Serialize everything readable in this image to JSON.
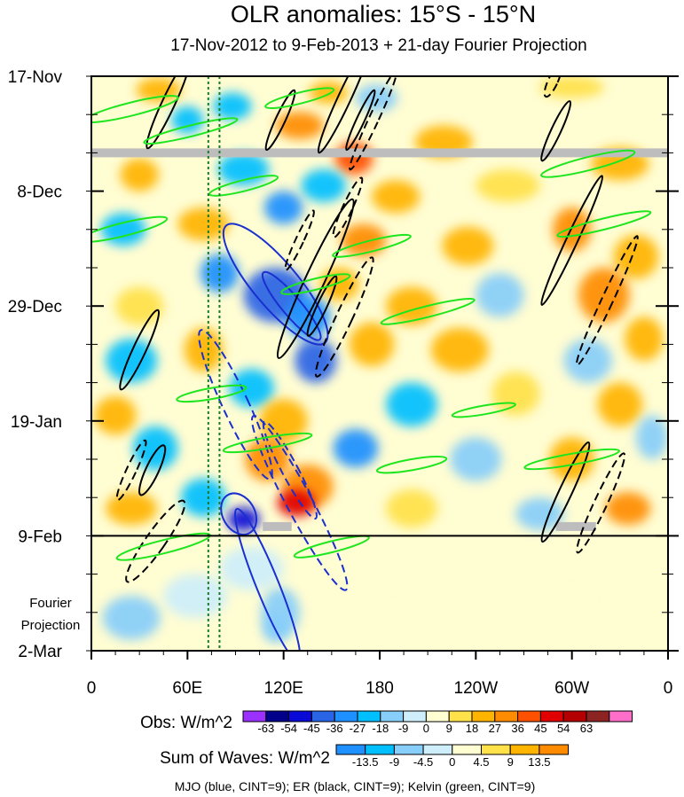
{
  "chart_data": {
    "type": "heatmap",
    "title": "OLR anomalies: 15°S - 15°N",
    "subtitle": "17-Nov-2012 to 9-Feb-2013 + 21-day Fourier Projection",
    "y_tick_labels": [
      "17-Nov",
      "8-Dec",
      "29-Dec",
      "19-Jan",
      "9-Feb",
      "2-Mar"
    ],
    "y_tick_days": [
      0,
      21,
      42,
      63,
      84,
      105
    ],
    "y_extra_label": [
      "Fourier",
      "Projection"
    ],
    "x_tick_labels": [
      "0",
      "60E",
      "120E",
      "180",
      "120W",
      "60W",
      "0"
    ],
    "x_tick_lons": [
      0,
      60,
      120,
      180,
      240,
      300,
      360
    ],
    "ylim_days": [
      0,
      105
    ],
    "xlim_lon": [
      0,
      360
    ],
    "obs_end_day": 84,
    "reference_lines_lon": [
      73,
      80
    ],
    "missing_data_rows": [
      {
        "day": 14,
        "lon_start": 0,
        "lon_end": 360
      },
      {
        "day": 82.3,
        "lon_start": 107,
        "lon_end": 125
      },
      {
        "day": 82.3,
        "lon_start": 290,
        "lon_end": 315
      }
    ],
    "obs_colorbar": {
      "label": "Obs: W/m^2",
      "tick_labels": [
        "-63",
        "-54",
        "-45",
        "-36",
        "-27",
        "-18",
        "-9",
        "0",
        "9",
        "18",
        "27",
        "36",
        "45",
        "54",
        "63"
      ],
      "colors": [
        "#9b30ff",
        "#00008b",
        "#0a0ad8",
        "#2a64e6",
        "#1e90ff",
        "#00bfff",
        "#87cefa",
        "#cdeefa",
        "#fffdd2",
        "#ffe14a",
        "#ffb400",
        "#ff8c00",
        "#ff5000",
        "#e00000",
        "#b40000",
        "#8c2323",
        "#ff6ec8"
      ]
    },
    "waves_colorbar": {
      "label": "Sum of Waves: W/m^2",
      "tick_labels": [
        "-13.5",
        "-9",
        "-4.5",
        "0",
        "4.5",
        "9",
        "13.5"
      ],
      "colors": [
        "#1e90ff",
        "#00bfff",
        "#87cefa",
        "#cdeefa",
        "#fffdd2",
        "#ffe14a",
        "#ffb400",
        "#ff8c00"
      ]
    },
    "footnote": "MJO (blue, CINT=9); ER (black, CINT=9); Kelvin (green, CINT=9)",
    "contour_series": [
      {
        "name": "MJO",
        "color": "#1a2fd0"
      },
      {
        "name": "ER",
        "color": "#000000"
      },
      {
        "name": "Kelvin",
        "color": "#1ee61e"
      }
    ],
    "anomaly_blobs": [
      {
        "lon": 42,
        "day": 2.5,
        "rlon": 14,
        "rday": 2.2,
        "value": 22
      },
      {
        "lon": 88,
        "day": 5.5,
        "rlon": 12,
        "rday": 2.5,
        "value": -25
      },
      {
        "lon": 148,
        "day": 3,
        "rlon": 12,
        "rday": 2,
        "value": 20
      },
      {
        "lon": 178,
        "day": 4,
        "rlon": 13,
        "rday": 2.5,
        "value": -18
      },
      {
        "lon": 300,
        "day": 2,
        "rlon": 20,
        "rday": 2,
        "value": 12
      },
      {
        "lon": 60,
        "day": 8,
        "rlon": 10,
        "rday": 2.5,
        "value": -20
      },
      {
        "lon": 130,
        "day": 9,
        "rlon": 15,
        "rday": 2.5,
        "value": 28
      },
      {
        "lon": 164,
        "day": 15,
        "rlon": 12,
        "rday": 3,
        "value": 36
      },
      {
        "lon": 220,
        "day": 12,
        "rlon": 18,
        "rday": 3,
        "value": 22
      },
      {
        "lon": 95,
        "day": 17,
        "rlon": 16,
        "rday": 3,
        "value": -26
      },
      {
        "lon": 30,
        "day": 18,
        "rlon": 12,
        "rday": 3,
        "value": 22
      },
      {
        "lon": 145,
        "day": 20,
        "rlon": 14,
        "rday": 3,
        "value": -20
      },
      {
        "lon": 120,
        "day": 24,
        "rlon": 12,
        "rday": 3,
        "value": -36
      },
      {
        "lon": 190,
        "day": 22,
        "rlon": 15,
        "rday": 3,
        "value": 24
      },
      {
        "lon": 260,
        "day": 20,
        "rlon": 20,
        "rday": 3,
        "value": 16
      },
      {
        "lon": 330,
        "day": 16,
        "rlon": 18,
        "rday": 3,
        "value": 18
      },
      {
        "lon": 20,
        "day": 28,
        "rlon": 14,
        "rday": 3,
        "value": -22
      },
      {
        "lon": 70,
        "day": 27,
        "rlon": 16,
        "rday": 3,
        "value": 20
      },
      {
        "lon": 170,
        "day": 30,
        "rlon": 14,
        "rday": 3,
        "value": 30
      },
      {
        "lon": 235,
        "day": 31,
        "rlon": 16,
        "rday": 3.5,
        "value": 18
      },
      {
        "lon": 300,
        "day": 28,
        "rlon": 12,
        "rday": 4,
        "value": 27
      },
      {
        "lon": 340,
        "day": 33,
        "rlon": 14,
        "rday": 4,
        "value": 20
      },
      {
        "lon": 80,
        "day": 36,
        "rlon": 12,
        "rday": 3.5,
        "value": -28
      },
      {
        "lon": 115,
        "day": 40,
        "rlon": 20,
        "rday": 5,
        "value": -45
      },
      {
        "lon": 135,
        "day": 44,
        "rlon": 14,
        "rday": 4,
        "value": -36
      },
      {
        "lon": 155,
        "day": 38,
        "rlon": 12,
        "rday": 3,
        "value": 25
      },
      {
        "lon": 200,
        "day": 42,
        "rlon": 16,
        "rday": 3.5,
        "value": 22
      },
      {
        "lon": 255,
        "day": 40,
        "rlon": 15,
        "rday": 4,
        "value": -14
      },
      {
        "lon": 320,
        "day": 40,
        "rlon": 16,
        "rday": 5,
        "value": 27
      },
      {
        "lon": 30,
        "day": 42,
        "rlon": 15,
        "rday": 3.5,
        "value": 16
      },
      {
        "lon": 25,
        "day": 52,
        "rlon": 16,
        "rday": 4,
        "value": -24
      },
      {
        "lon": 70,
        "day": 50,
        "rlon": 12,
        "rday": 4,
        "value": 26
      },
      {
        "lon": 140,
        "day": 52,
        "rlon": 13,
        "rday": 4,
        "value": -40
      },
      {
        "lon": 175,
        "day": 49,
        "rlon": 14,
        "rday": 4,
        "value": 22
      },
      {
        "lon": 230,
        "day": 50,
        "rlon": 18,
        "rday": 4,
        "value": 20
      },
      {
        "lon": 310,
        "day": 52,
        "rlon": 15,
        "rday": 4,
        "value": -18
      },
      {
        "lon": 345,
        "day": 48,
        "rlon": 12,
        "rday": 4,
        "value": 22
      },
      {
        "lon": 100,
        "day": 57,
        "rlon": 14,
        "rday": 3.5,
        "value": -26
      },
      {
        "lon": 200,
        "day": 60,
        "rlon": 16,
        "rday": 4,
        "value": -22
      },
      {
        "lon": 265,
        "day": 58,
        "rlon": 15,
        "rday": 4,
        "value": 16
      },
      {
        "lon": 330,
        "day": 60,
        "rlon": 14,
        "rday": 4,
        "value": 26
      },
      {
        "lon": 15,
        "day": 62,
        "rlon": 13,
        "rday": 3.5,
        "value": 20
      },
      {
        "lon": 120,
        "day": 63,
        "rlon": 15,
        "rday": 4,
        "value": 24
      },
      {
        "lon": 40,
        "day": 68,
        "rlon": 14,
        "rday": 4,
        "value": -24
      },
      {
        "lon": 110,
        "day": 70,
        "rlon": 14,
        "rday": 4,
        "value": 30
      },
      {
        "lon": 165,
        "day": 68,
        "rlon": 14,
        "rday": 3.5,
        "value": -30
      },
      {
        "lon": 240,
        "day": 70,
        "rlon": 16,
        "rday": 4,
        "value": -18
      },
      {
        "lon": 300,
        "day": 70,
        "rlon": 14,
        "rday": 4,
        "value": 22
      },
      {
        "lon": 350,
        "day": 66,
        "rlon": 10,
        "rday": 4,
        "value": -18
      },
      {
        "lon": 135,
        "day": 75,
        "rlon": 16,
        "rday": 4,
        "value": 27
      },
      {
        "lon": 128,
        "day": 78,
        "rlon": 12,
        "rday": 2.5,
        "value": 48
      },
      {
        "lon": 70,
        "day": 77,
        "rlon": 14,
        "rday": 3.5,
        "value": -22
      },
      {
        "lon": 25,
        "day": 79,
        "rlon": 16,
        "rday": 3,
        "value": 24
      },
      {
        "lon": 95,
        "day": 81,
        "rlon": 10,
        "rday": 2.2,
        "value": -52
      },
      {
        "lon": 200,
        "day": 79,
        "rlon": 16,
        "rday": 3.5,
        "value": 16
      },
      {
        "lon": 280,
        "day": 80,
        "rlon": 15,
        "rday": 3,
        "value": -16
      },
      {
        "lon": 335,
        "day": 79,
        "rlon": 14,
        "rday": 3,
        "value": 27
      },
      {
        "lon": 30,
        "day": 88,
        "rlon": 24,
        "rday": 3,
        "value": 6
      },
      {
        "lon": 100,
        "day": 90,
        "rlon": 20,
        "rday": 4,
        "value": -6
      },
      {
        "lon": 160,
        "day": 86,
        "rlon": 16,
        "rday": 2.5,
        "value": 6
      },
      {
        "lon": 65,
        "day": 95,
        "rlon": 20,
        "rday": 4,
        "value": -7
      },
      {
        "lon": 25,
        "day": 99,
        "rlon": 18,
        "rday": 4,
        "value": -10
      },
      {
        "lon": 118,
        "day": 98,
        "rlon": 12,
        "rday": 4.5,
        "value": -14
      },
      {
        "lon": 115,
        "day": 101,
        "rlon": 8,
        "rday": 2.5,
        "value": -16
      },
      {
        "lon": 190,
        "day": 98,
        "rlon": 20,
        "rday": 4,
        "value": 5
      },
      {
        "lon": 300,
        "day": 95,
        "rlon": 22,
        "rday": 4,
        "value": 4
      }
    ],
    "contours": [
      {
        "series": "MJO",
        "lon": 115,
        "day": 38,
        "rlon": 14,
        "rday": 14,
        "angle": -40,
        "dashed": false
      },
      {
        "series": "MJO",
        "lon": 125,
        "day": 42,
        "rlon": 6,
        "rday": 8,
        "angle": -40,
        "dashed": false
      },
      {
        "series": "MJO",
        "lon": 92,
        "day": 80,
        "rlon": 10,
        "rday": 4,
        "angle": -30,
        "dashed": false
      },
      {
        "series": "MJO",
        "lon": 110,
        "day": 93,
        "rlon": 7,
        "rday": 15,
        "angle": -22,
        "dashed": false
      },
      {
        "series": "MJO",
        "lon": 90,
        "day": 60,
        "rlon": 8,
        "rday": 15,
        "angle": -25,
        "dashed": true
      },
      {
        "series": "MJO",
        "lon": 130,
        "day": 78,
        "rlon": 8,
        "rday": 18,
        "angle": -28,
        "dashed": true
      },
      {
        "series": "MJO",
        "lon": 124,
        "day": 72,
        "rlon": 5,
        "rday": 10,
        "angle": -28,
        "dashed": true
      },
      {
        "series": "ER",
        "lon": 30,
        "day": 50,
        "rlon": 4,
        "rday": 8,
        "angle": 25,
        "dashed": false
      },
      {
        "series": "ER",
        "lon": 38,
        "day": 72,
        "rlon": 4,
        "rday": 5,
        "angle": 25,
        "dashed": false
      },
      {
        "series": "ER",
        "lon": 48,
        "day": 5,
        "rlon": 4,
        "rday": 9,
        "angle": 25,
        "dashed": false
      },
      {
        "series": "ER",
        "lon": 158,
        "day": 4,
        "rlon": 4,
        "rday": 11,
        "angle": 25,
        "dashed": false
      },
      {
        "series": "ER",
        "lon": 168,
        "day": 8,
        "rlon": 2.5,
        "rday": 6,
        "angle": 25,
        "dashed": false
      },
      {
        "series": "ER",
        "lon": 118,
        "day": 8,
        "rlon": 3,
        "rday": 6,
        "angle": 25,
        "dashed": false
      },
      {
        "series": "ER",
        "lon": 140,
        "day": 37,
        "rlon": 6,
        "rday": 16,
        "angle": 25,
        "dashed": false
      },
      {
        "series": "ER",
        "lon": 144,
        "day": 42,
        "rlon": 3,
        "rday": 6,
        "angle": 25,
        "dashed": false
      },
      {
        "series": "ER",
        "lon": 176,
        "day": 8,
        "rlon": 3,
        "rday": 10,
        "angle": 25,
        "dashed": true
      },
      {
        "series": "ER",
        "lon": 160,
        "day": 24,
        "rlon": 3,
        "rday": 6,
        "angle": 25,
        "dashed": true
      },
      {
        "series": "ER",
        "lon": 158,
        "day": 44,
        "rlon": 5,
        "rday": 12,
        "angle": 25,
        "dashed": true
      },
      {
        "series": "ER",
        "lon": 130,
        "day": 30,
        "rlon": 2.5,
        "rday": 6,
        "angle": 25,
        "dashed": true
      },
      {
        "series": "ER",
        "lon": 40,
        "day": 85,
        "rlon": 6,
        "rday": 9,
        "angle": 35,
        "dashed": true
      },
      {
        "series": "ER",
        "lon": 25,
        "day": 72,
        "rlon": 3,
        "rday": 6,
        "angle": 25,
        "dashed": true
      },
      {
        "series": "ER",
        "lon": 300,
        "day": 30,
        "rlon": 3.5,
        "rday": 13,
        "angle": 25,
        "dashed": false
      },
      {
        "series": "ER",
        "lon": 322,
        "day": 41,
        "rlon": 3.5,
        "rday": 13,
        "angle": 25,
        "dashed": true
      },
      {
        "series": "ER",
        "lon": 290,
        "day": 10,
        "rlon": 3,
        "rday": 6,
        "angle": 25,
        "dashed": false
      },
      {
        "series": "ER",
        "lon": 288,
        "day": 1,
        "rlon": 3,
        "rday": 3,
        "angle": 25,
        "dashed": true
      },
      {
        "series": "ER",
        "lon": 296,
        "day": 76,
        "rlon": 4,
        "rday": 10,
        "angle": 25,
        "dashed": false
      },
      {
        "series": "ER",
        "lon": 318,
        "day": 78,
        "rlon": 4,
        "rday": 10,
        "angle": 25,
        "dashed": true
      },
      {
        "series": "Kelvin",
        "lon": 25,
        "day": 6,
        "rlon": 30,
        "rday": 1.2,
        "angle": -14,
        "dashed": false
      },
      {
        "series": "Kelvin",
        "lon": 62,
        "day": 10,
        "rlon": 30,
        "rday": 1.0,
        "angle": -14,
        "dashed": false
      },
      {
        "series": "Kelvin",
        "lon": 20,
        "day": 28,
        "rlon": 28,
        "rday": 1.2,
        "angle": -14,
        "dashed": false
      },
      {
        "series": "Kelvin",
        "lon": 95,
        "day": 20,
        "rlon": 22,
        "rday": 1.0,
        "angle": -14,
        "dashed": false
      },
      {
        "series": "Kelvin",
        "lon": 175,
        "day": 31,
        "rlon": 25,
        "rday": 1.0,
        "angle": -14,
        "dashed": false
      },
      {
        "series": "Kelvin",
        "lon": 210,
        "day": 43,
        "rlon": 30,
        "rday": 1.0,
        "angle": -14,
        "dashed": false
      },
      {
        "series": "Kelvin",
        "lon": 140,
        "day": 38,
        "rlon": 22,
        "rday": 1.0,
        "angle": -14,
        "dashed": false
      },
      {
        "series": "Kelvin",
        "lon": 130,
        "day": 4,
        "rlon": 22,
        "rday": 1.0,
        "angle": -14,
        "dashed": false
      },
      {
        "series": "Kelvin",
        "lon": 310,
        "day": 16,
        "rlon": 30,
        "rday": 1.2,
        "angle": -14,
        "dashed": false
      },
      {
        "series": "Kelvin",
        "lon": 320,
        "day": 27,
        "rlon": 30,
        "rday": 1.0,
        "angle": -14,
        "dashed": false
      },
      {
        "series": "Kelvin",
        "lon": 110,
        "day": 67,
        "rlon": 28,
        "rday": 1.0,
        "angle": -10,
        "dashed": false
      },
      {
        "series": "Kelvin",
        "lon": 200,
        "day": 71,
        "rlon": 22,
        "rday": 1.0,
        "angle": -10,
        "dashed": false
      },
      {
        "series": "Kelvin",
        "lon": 300,
        "day": 70,
        "rlon": 30,
        "rday": 1.0,
        "angle": -10,
        "dashed": false
      },
      {
        "series": "Kelvin",
        "lon": 45,
        "day": 86,
        "rlon": 30,
        "rday": 1.2,
        "angle": -14,
        "dashed": false
      },
      {
        "series": "Kelvin",
        "lon": 150,
        "day": 86,
        "rlon": 24,
        "rday": 1.0,
        "angle": -14,
        "dashed": false
      },
      {
        "series": "Kelvin",
        "lon": 245,
        "day": 61,
        "rlon": 20,
        "rday": 0.8,
        "angle": -10,
        "dashed": false
      },
      {
        "series": "Kelvin",
        "lon": 75,
        "day": 58,
        "rlon": 22,
        "rday": 1.0,
        "angle": -10,
        "dashed": false
      }
    ]
  }
}
